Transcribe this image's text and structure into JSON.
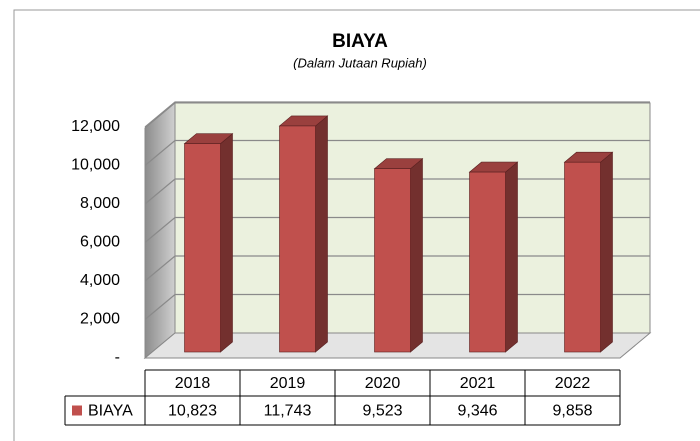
{
  "chart_data": {
    "type": "bar3d",
    "title": "BIAYA",
    "subtitle": "(Dalam Jutaan Rupiah)",
    "categories": [
      "2018",
      "2019",
      "2020",
      "2021",
      "2022"
    ],
    "series": [
      {
        "name": "BIAYA",
        "color": "#c0504d",
        "values": [
          10823,
          11743,
          9523,
          9346,
          9858
        ],
        "value_labels": [
          "10,823",
          "11,743",
          "9,523",
          "9,346",
          "9,858"
        ]
      }
    ],
    "ylim": [
      0,
      12000
    ],
    "yticks": [
      {
        "value": 0,
        "label": "-"
      },
      {
        "value": 2000,
        "label": "2,000"
      },
      {
        "value": 4000,
        "label": "4,000"
      },
      {
        "value": 6000,
        "label": "6,000"
      },
      {
        "value": 8000,
        "label": "8,000"
      },
      {
        "value": 10000,
        "label": "10,000"
      },
      {
        "value": 12000,
        "label": "12,000"
      }
    ],
    "grid": true
  }
}
